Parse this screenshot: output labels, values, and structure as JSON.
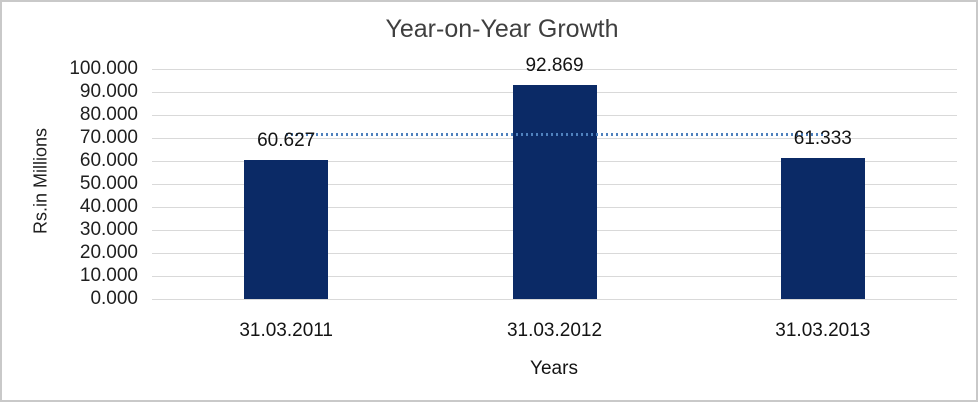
{
  "chart_data": {
    "type": "bar",
    "title": "Year-on-Year Growth",
    "xlabel": "Years",
    "ylabel": "Rs.in Millions",
    "categories": [
      "31.03.2011",
      "31.03.2012",
      "31.03.2013"
    ],
    "values": [
      60.627,
      92.869,
      61.333
    ],
    "data_labels": [
      "60.627",
      "92.869",
      "61.333"
    ],
    "y_ticks": [
      "100.000",
      "90.000",
      "80.000",
      "70.000",
      "60.000",
      "50.000",
      "40.000",
      "30.000",
      "20.000",
      "10.000",
      "0.000"
    ],
    "ylim": [
      0,
      100
    ],
    "y_tick_step": 10,
    "grid": true,
    "legend": "none",
    "average_line": {
      "value": 71.61,
      "style": "dotted",
      "color": "#4f81bd"
    },
    "colors": {
      "bar": "#0b2a66",
      "gridline": "#d9d9d9",
      "frame": "#c9c9c9",
      "text": "#1f1f1f",
      "title_text": "#3f3f3f"
    }
  }
}
